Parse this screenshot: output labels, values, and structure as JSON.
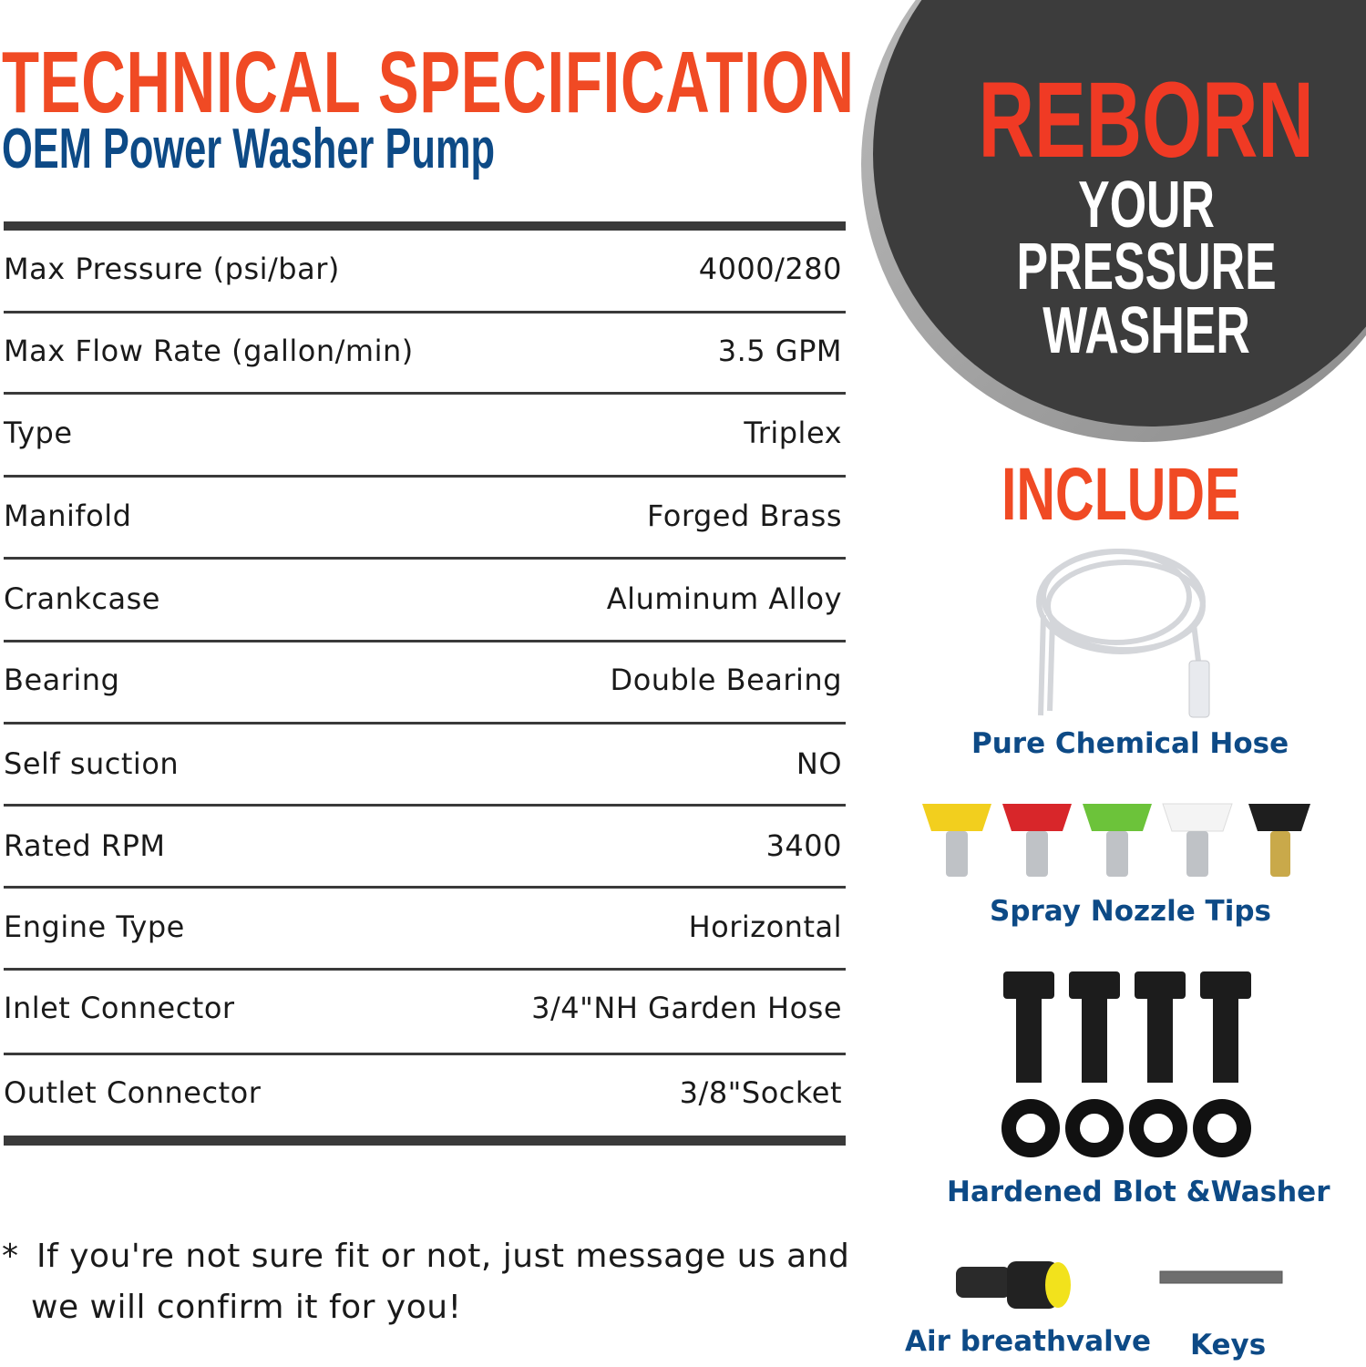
{
  "header": {
    "title": "TECHNICAL SPECIFICATION",
    "subtitle": "OEM Power Washer Pump"
  },
  "specs": [
    {
      "label": "Max Pressure (psi/bar)",
      "value": "4000/280"
    },
    {
      "label": "Max Flow Rate (gallon/min)",
      "value": "3.5 GPM"
    },
    {
      "label": "Type",
      "value": "Triplex"
    },
    {
      "label": "Manifold",
      "value": "Forged Brass"
    },
    {
      "label": "Crankcase",
      "value": "Aluminum Alloy"
    },
    {
      "label": "Bearing",
      "value": "Double Bearing"
    },
    {
      "label": "Self suction",
      "value": "NO"
    },
    {
      "label": "Rated RPM",
      "value": "3400"
    },
    {
      "label": "Engine Type",
      "value": "Horizontal"
    },
    {
      "label": "Inlet Connector",
      "value": "3/4\"NH Garden Hose"
    },
    {
      "label": "Outlet Connector",
      "value": "3/8\"Socket"
    }
  ],
  "note": {
    "asterisk": "*",
    "line1": "If you're not sure fit or not, just message us and",
    "line2": "we will confirm it for you!"
  },
  "badge": {
    "line1": "REBORN",
    "line2": "YOUR",
    "line3": "PRESSURE",
    "line4": "WASHER"
  },
  "include": {
    "heading": "INCLUDE",
    "items": [
      {
        "label": "Pure Chemical Hose",
        "icon": "hose-icon"
      },
      {
        "label": "Spray Nozzle Tips",
        "icon": "nozzle-icon"
      },
      {
        "label": "Hardened Blot &Washer",
        "icon": "bolt-washer-icon"
      },
      {
        "label": "Air breathvalve",
        "icon": "valve-icon"
      },
      {
        "label": "Keys",
        "icon": "key-icon"
      }
    ]
  },
  "colors": {
    "accent": "#f04a24",
    "brand_blue": "#0d4a86",
    "dark": "#3c3c3c"
  }
}
